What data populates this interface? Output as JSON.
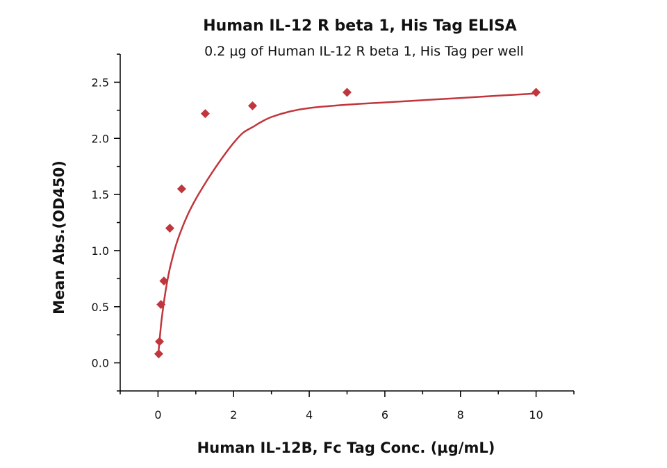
{
  "chart_data": {
    "type": "scatter",
    "title": "Human IL-12 R beta 1, His Tag ELISA",
    "subtitle": "0.2 µg of Human IL-12 R beta 1, His Tag per well",
    "xlabel": "Human IL-12B, Fc Tag Conc. (µg/mL)",
    "ylabel": "Mean Abs.(OD450)",
    "xlim": [
      -1,
      11
    ],
    "ylim": [
      -0.25,
      2.75
    ],
    "x_ticks": [
      0,
      2,
      4,
      6,
      8,
      10
    ],
    "x_tick_labels": [
      "0",
      "2",
      "4",
      "6",
      "8",
      "10"
    ],
    "y_ticks": [
      0.0,
      0.5,
      1.0,
      1.5,
      2.0,
      2.5
    ],
    "y_tick_labels": [
      "0.0",
      "0.5",
      "1.0",
      "1.5",
      "2.0",
      "2.5"
    ],
    "grid": false,
    "color": "#c0363c",
    "marker": "diamond",
    "series": [
      {
        "x": [
          0.0195,
          0.039,
          0.078,
          0.156,
          0.3125,
          0.625,
          1.25,
          2.5,
          5,
          10
        ],
        "y": [
          0.08,
          0.19,
          0.52,
          0.73,
          1.2,
          1.55,
          2.22,
          2.29,
          2.41,
          2.41
        ]
      }
    ],
    "fit_curve": {
      "x": [
        0,
        0.05,
        0.1,
        0.2,
        0.3,
        0.45,
        0.6,
        0.8,
        1.0,
        1.25,
        1.5,
        1.75,
        2.0,
        2.25,
        2.5,
        2.75,
        3.0,
        3.5,
        4.0,
        5.0,
        6.0,
        7.0,
        8.0,
        9.0,
        10.0
      ],
      "y": [
        0.05,
        0.23,
        0.4,
        0.64,
        0.82,
        1.02,
        1.17,
        1.33,
        1.46,
        1.6,
        1.73,
        1.85,
        1.96,
        2.05,
        2.1,
        2.15,
        2.19,
        2.24,
        2.27,
        2.3,
        2.32,
        2.34,
        2.36,
        2.38,
        2.4
      ]
    }
  }
}
